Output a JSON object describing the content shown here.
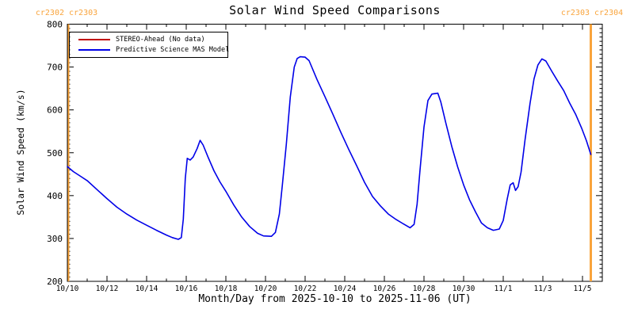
{
  "annotations": {
    "left_label": "cr2302 cr2303",
    "right_label": "cr2303 cr2304",
    "color": "#F9A43C"
  },
  "chart_data": {
    "type": "line",
    "title": "Solar Wind Speed Comparisons",
    "xlabel": "Month/Day from 2025-10-10 to 2025-11-06 (UT)",
    "ylabel": "Solar Wind Speed (km/s)",
    "x_unit": "days since 2025-10-10",
    "xlim": [
      0,
      27
    ],
    "ylim": [
      200,
      800
    ],
    "grid": false,
    "x_major_ticks": [
      {
        "day": 0,
        "label": "10/10"
      },
      {
        "day": 2,
        "label": "10/12"
      },
      {
        "day": 4,
        "label": "10/14"
      },
      {
        "day": 6,
        "label": "10/16"
      },
      {
        "day": 8,
        "label": "10/18"
      },
      {
        "day": 10,
        "label": "10/20"
      },
      {
        "day": 12,
        "label": "10/22"
      },
      {
        "day": 14,
        "label": "10/24"
      },
      {
        "day": 16,
        "label": "10/26"
      },
      {
        "day": 18,
        "label": "10/28"
      },
      {
        "day": 20,
        "label": "10/30"
      },
      {
        "day": 22,
        "label": "11/1"
      },
      {
        "day": 24,
        "label": "11/3"
      },
      {
        "day": 26,
        "label": "11/5"
      }
    ],
    "x_minor_step_days": 1,
    "y_major_ticks": [
      200,
      300,
      400,
      500,
      600,
      700,
      800
    ],
    "y_minor_step": 10,
    "legend": {
      "position": "top-left"
    },
    "cr_boundaries": [
      {
        "day": 0.06,
        "label": "cr2302 cr2303",
        "color": "#F9A43C",
        "width": 2
      },
      {
        "day": 26.42,
        "label": "cr2303 cr2304",
        "color": "#F9A43C",
        "width": 3
      }
    ],
    "series": [
      {
        "name": "STEREO-Ahead (No data)",
        "color": "#C00000",
        "points": []
      },
      {
        "name": "Predictive Science MAS Model",
        "color": "#0000E8",
        "points": [
          [
            0,
            468
          ],
          [
            0.3,
            456
          ],
          [
            0.7,
            444
          ],
          [
            1,
            435
          ],
          [
            1.5,
            414
          ],
          [
            2,
            393
          ],
          [
            2.5,
            373
          ],
          [
            3,
            357
          ],
          [
            3.5,
            343
          ],
          [
            4,
            331
          ],
          [
            4.5,
            319
          ],
          [
            5,
            308
          ],
          [
            5.3,
            302
          ],
          [
            5.6,
            298
          ],
          [
            5.75,
            302
          ],
          [
            5.85,
            345
          ],
          [
            5.95,
            440
          ],
          [
            6.05,
            487
          ],
          [
            6.2,
            483
          ],
          [
            6.35,
            490
          ],
          [
            6.55,
            510
          ],
          [
            6.7,
            529
          ],
          [
            6.85,
            518
          ],
          [
            7.1,
            490
          ],
          [
            7.4,
            458
          ],
          [
            7.7,
            432
          ],
          [
            8,
            410
          ],
          [
            8.4,
            378
          ],
          [
            8.8,
            350
          ],
          [
            9.2,
            328
          ],
          [
            9.6,
            312
          ],
          [
            9.9,
            306
          ],
          [
            10.3,
            305
          ],
          [
            10.5,
            314
          ],
          [
            10.7,
            357
          ],
          [
            10.85,
            425
          ],
          [
            11.05,
            520
          ],
          [
            11.25,
            630
          ],
          [
            11.45,
            700
          ],
          [
            11.6,
            720
          ],
          [
            11.75,
            724
          ],
          [
            12,
            723
          ],
          [
            12.2,
            715
          ],
          [
            12.6,
            671
          ],
          [
            13,
            631
          ],
          [
            13.4,
            590
          ],
          [
            13.8,
            548
          ],
          [
            14.2,
            508
          ],
          [
            14.6,
            470
          ],
          [
            15,
            431
          ],
          [
            15.4,
            398
          ],
          [
            15.8,
            376
          ],
          [
            16.2,
            357
          ],
          [
            16.6,
            344
          ],
          [
            17,
            333
          ],
          [
            17.3,
            325
          ],
          [
            17.5,
            333
          ],
          [
            17.65,
            380
          ],
          [
            17.8,
            460
          ],
          [
            18,
            560
          ],
          [
            18.2,
            622
          ],
          [
            18.4,
            637
          ],
          [
            18.7,
            639
          ],
          [
            18.85,
            618
          ],
          [
            19.1,
            570
          ],
          [
            19.4,
            515
          ],
          [
            19.7,
            467
          ],
          [
            20,
            425
          ],
          [
            20.3,
            390
          ],
          [
            20.6,
            362
          ],
          [
            20.9,
            336
          ],
          [
            21.2,
            325
          ],
          [
            21.5,
            319
          ],
          [
            21.8,
            322
          ],
          [
            22,
            342
          ],
          [
            22.2,
            392
          ],
          [
            22.35,
            425
          ],
          [
            22.5,
            430
          ],
          [
            22.62,
            412
          ],
          [
            22.75,
            421
          ],
          [
            22.9,
            455
          ],
          [
            23.1,
            530
          ],
          [
            23.35,
            615
          ],
          [
            23.55,
            672
          ],
          [
            23.75,
            705
          ],
          [
            23.95,
            719
          ],
          [
            24.15,
            714
          ],
          [
            24.45,
            690
          ],
          [
            24.75,
            667
          ],
          [
            25.05,
            645
          ],
          [
            25.35,
            616
          ],
          [
            25.65,
            590
          ],
          [
            25.95,
            558
          ],
          [
            26.2,
            528
          ],
          [
            26.42,
            496
          ]
        ]
      }
    ]
  }
}
